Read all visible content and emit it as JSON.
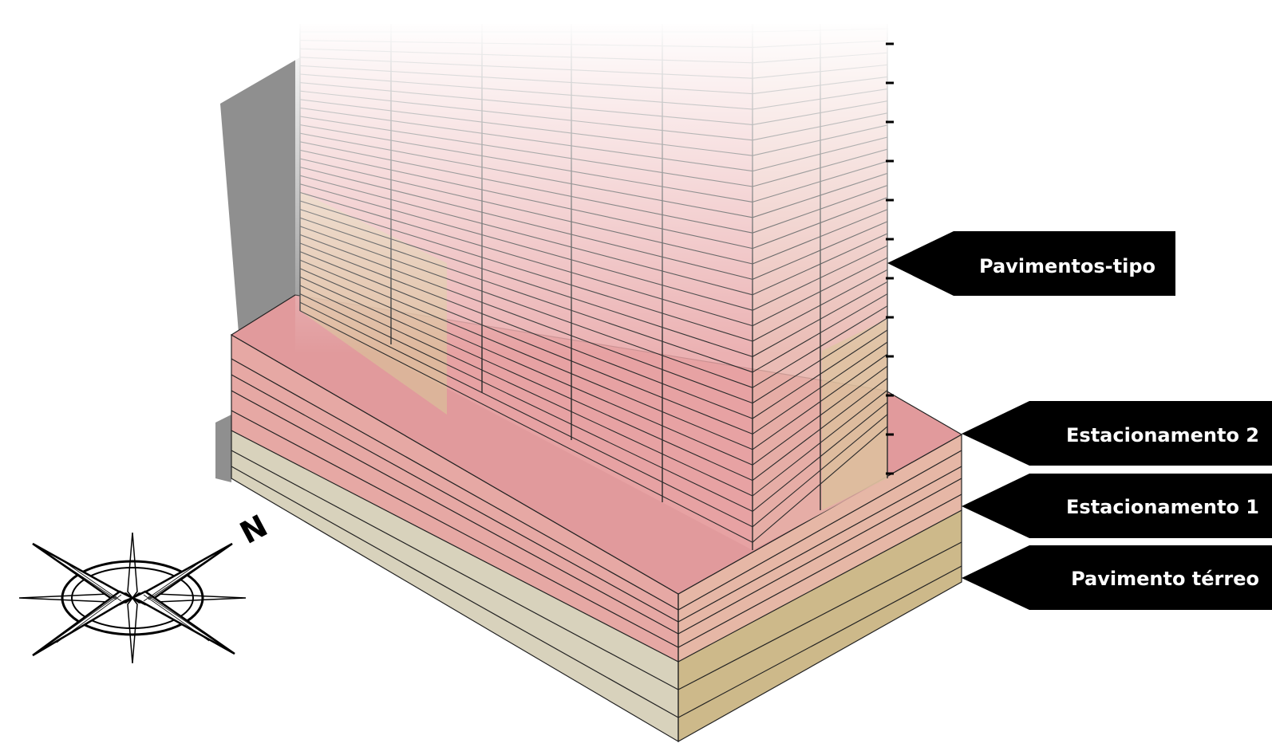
{
  "labels": [
    {
      "id": "pavimentos-tipo",
      "text": "Pavimentos-tipo"
    },
    {
      "id": "estacionamento-2",
      "text": "Estacionamento 2"
    },
    {
      "id": "estacionamento-1",
      "text": "Estacionamento 1"
    },
    {
      "id": "pavimento-terreo",
      "text": "Pavimento térreo"
    }
  ],
  "compass": {
    "north_letter": "N",
    "icon": "compass-rose-icon"
  },
  "colors": {
    "tower_pink": "#e8a3a5",
    "podium_pink": "#e19a9c",
    "base_beige": "#d8d2bc",
    "tan": "#cdb98a",
    "shadow": "#8f8f8f",
    "label_bg": "#000000",
    "label_text": "#ffffff"
  }
}
